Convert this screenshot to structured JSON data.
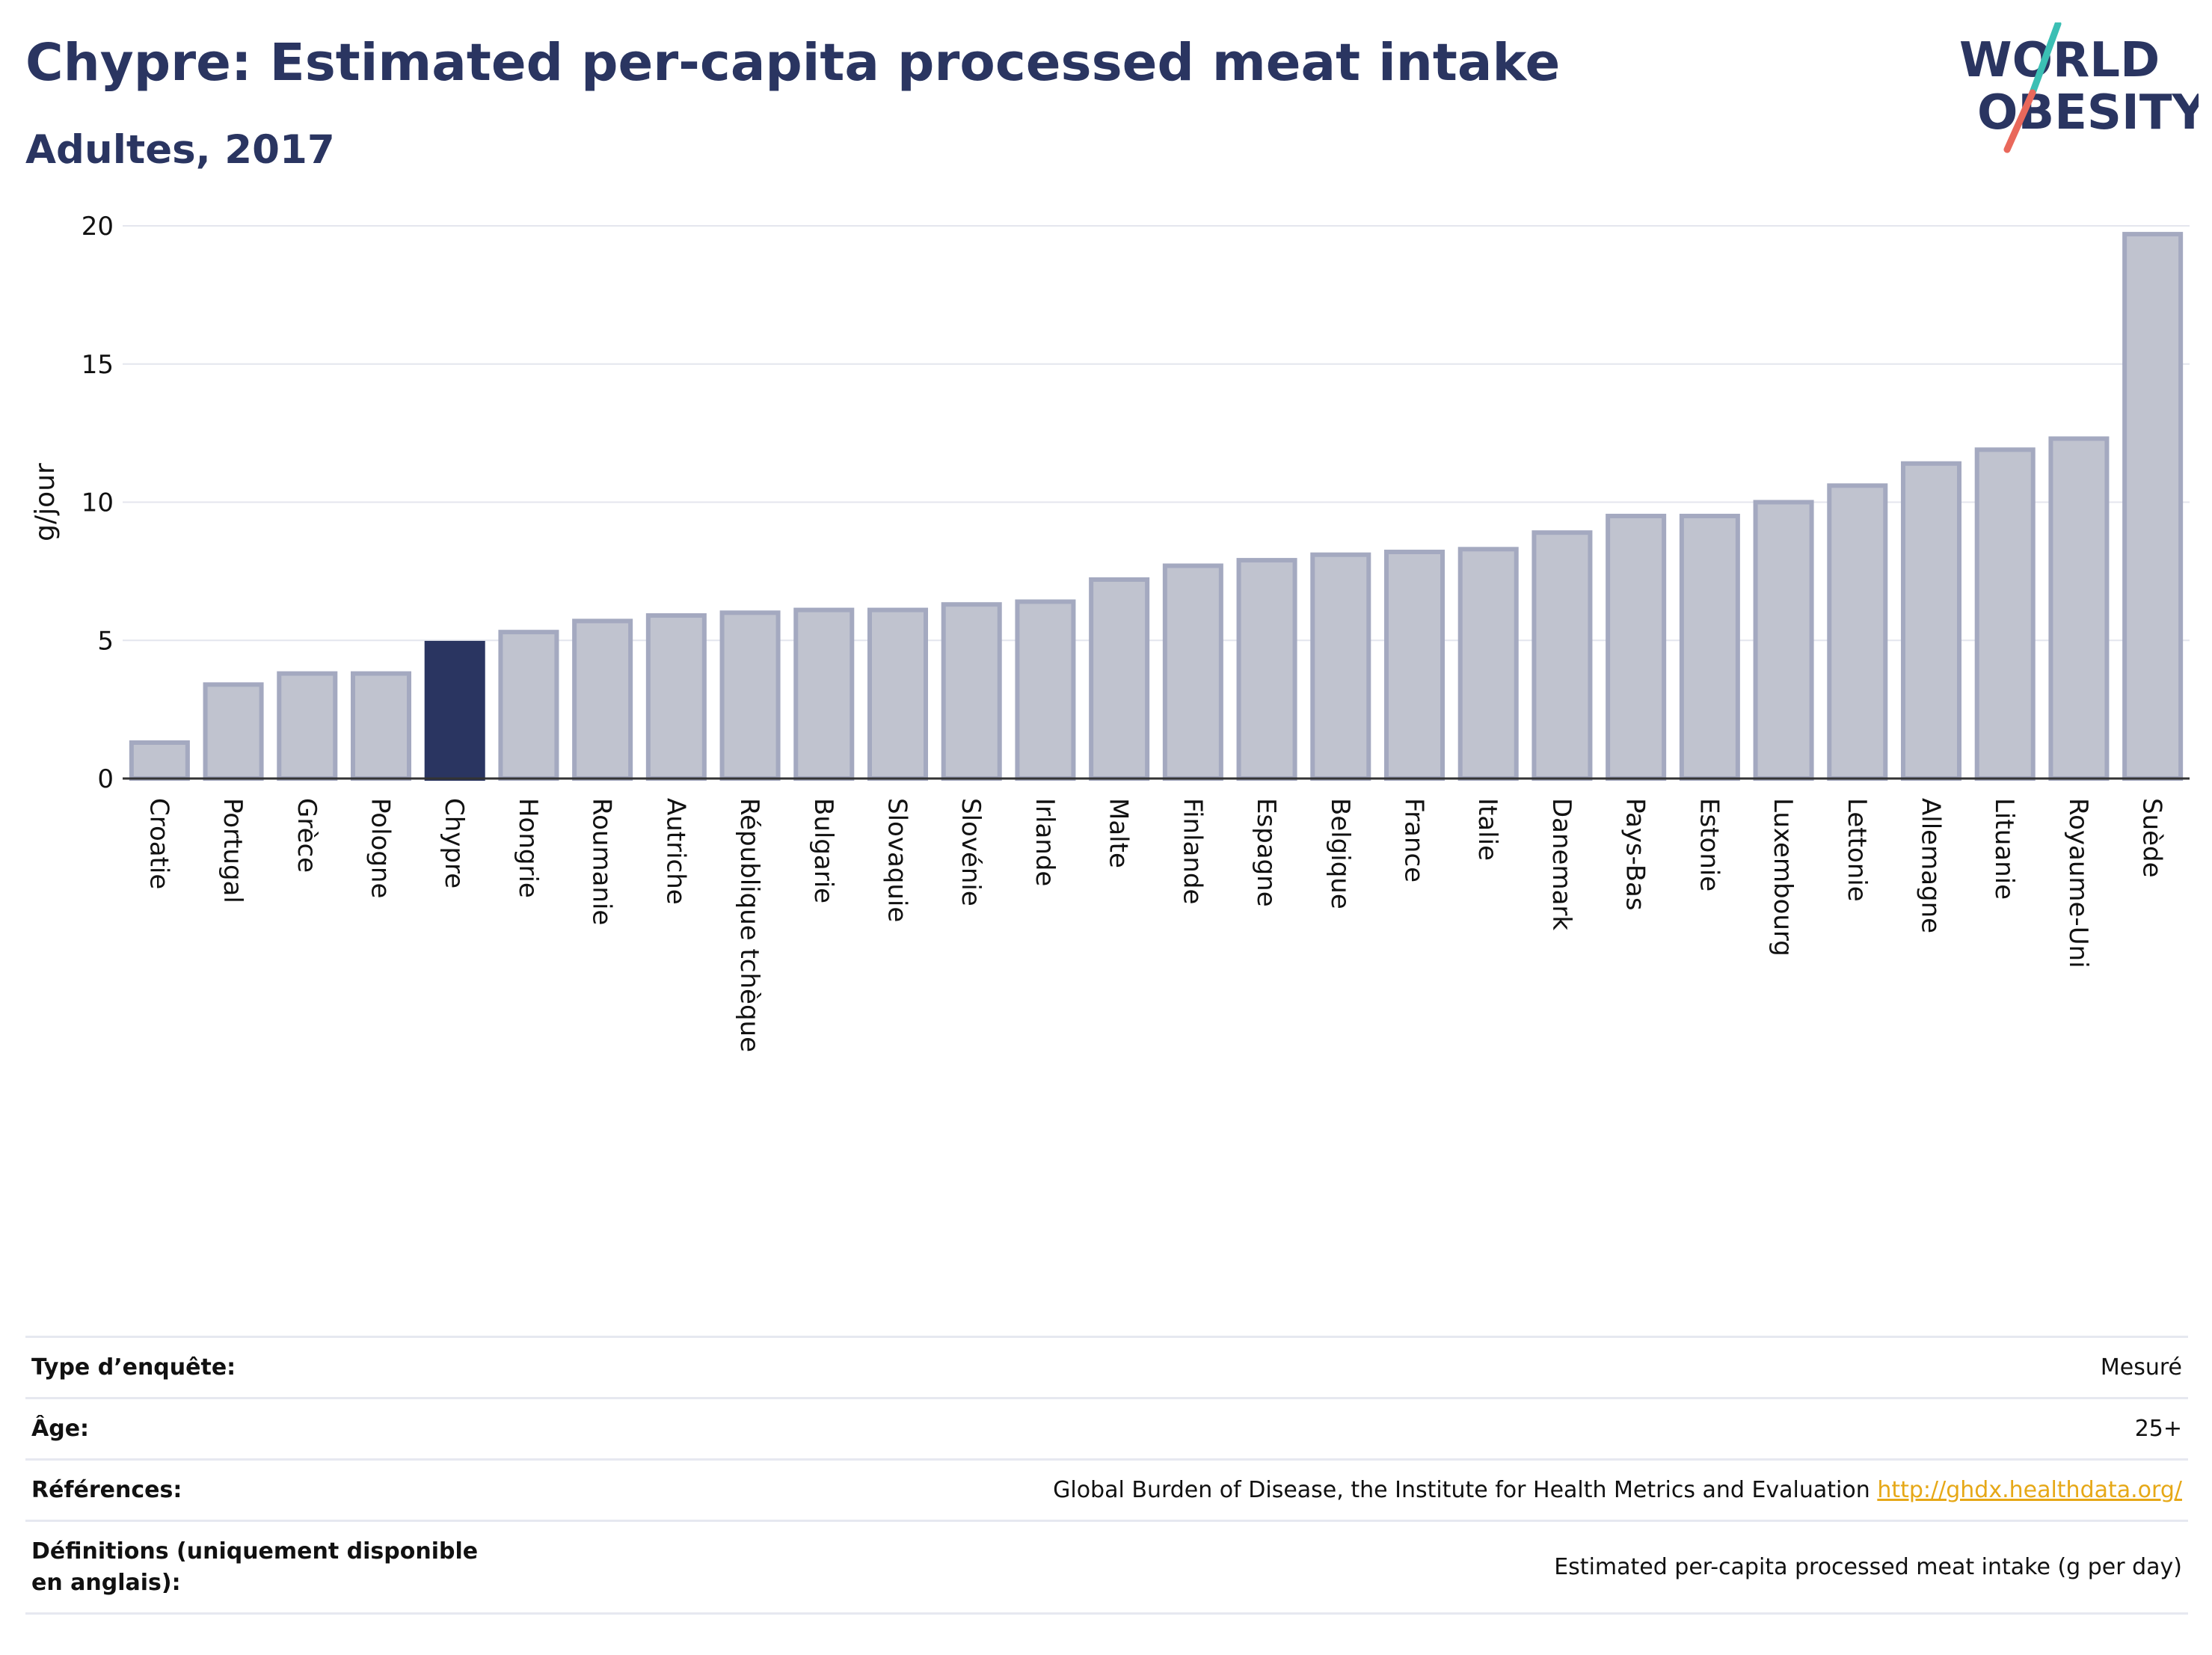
{
  "header": {
    "title": "Chypre: Estimated per-capita processed meat intake",
    "subtitle": "Adultes, 2017"
  },
  "logo": {
    "line1": "WORLD",
    "line2": "OBESITY",
    "colors": {
      "text": "#2a3561",
      "slash_top": "#3bbfb4",
      "slash_bottom": "#e9685b"
    }
  },
  "chart_data": {
    "type": "bar",
    "xlabel": "",
    "ylabel": "g/jour",
    "ylim": [
      0,
      20
    ],
    "yticks": [
      0,
      5,
      10,
      15,
      20
    ],
    "grid": true,
    "highlight": "Chypre",
    "colors": {
      "bar": "#c0c3cf",
      "bar_edge": "#a4a9c0",
      "highlight": "#2a3561"
    },
    "categories": [
      "Croatie",
      "Portugal",
      "Grèce",
      "Pologne",
      "Chypre",
      "Hongrie",
      "Roumanie",
      "Autriche",
      "République tchèque",
      "Bulgarie",
      "Slovaquie",
      "Slovénie",
      "Irlande",
      "Malte",
      "Finlande",
      "Espagne",
      "Belgique",
      "France",
      "Italie",
      "Danemark",
      "Pays-Bas",
      "Estonie",
      "Luxembourg",
      "Lettonie",
      "Allemagne",
      "Lituanie",
      "Royaume-Uni",
      "Suède"
    ],
    "values": [
      1.3,
      3.4,
      3.8,
      3.8,
      4.9,
      5.3,
      5.7,
      5.9,
      6.0,
      6.1,
      6.1,
      6.3,
      6.4,
      7.2,
      7.7,
      7.9,
      8.1,
      8.2,
      8.3,
      8.9,
      9.5,
      9.5,
      10.0,
      10.6,
      11.4,
      11.9,
      12.3,
      19.7
    ]
  },
  "info_table": {
    "survey_label": "Type d’enquête:",
    "survey_value": "Mesuré",
    "age_label": "Âge:",
    "age_value": "25+",
    "refs_label": "Références:",
    "refs_value": "Global Burden of Disease, the Institute for Health Metrics and Evaluation",
    "refs_link": "http://ghdx.healthdata.org/",
    "defs_label": "Définitions (uniquement disponible en anglais):",
    "defs_value": "Estimated per-capita processed meat intake (g per day)"
  }
}
